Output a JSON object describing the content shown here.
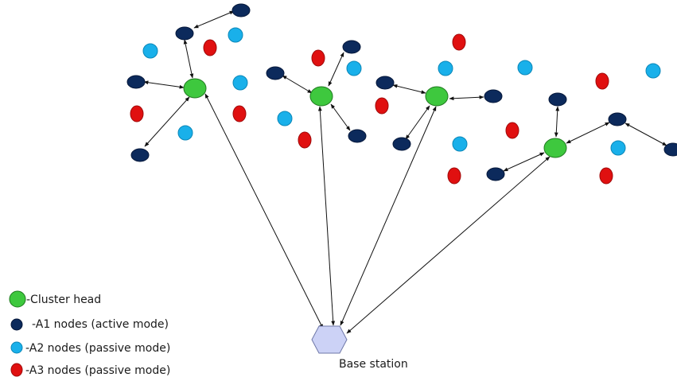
{
  "colors": {
    "cluster_head": "#3ec83e",
    "a1": "#0c2a5c",
    "a2": "#19b0ea",
    "a3": "#e01010",
    "base_station": "#ccd2f6",
    "edge": "#111111"
  },
  "base_station": {
    "label": "Base station",
    "icon": "hexagon-icon"
  },
  "legend": [
    {
      "id": "cluster-head",
      "icon": "green-ellipse",
      "label": "-Cluster head"
    },
    {
      "id": "a1",
      "icon": "navy-dot",
      "label": "-A1 nodes (active mode)"
    },
    {
      "id": "a2",
      "icon": "cyan-dot",
      "label": "-A2 nodes (passive mode)"
    },
    {
      "id": "a3",
      "icon": "red-dot",
      "label": "-A3 nodes (passive mode)"
    }
  ]
}
